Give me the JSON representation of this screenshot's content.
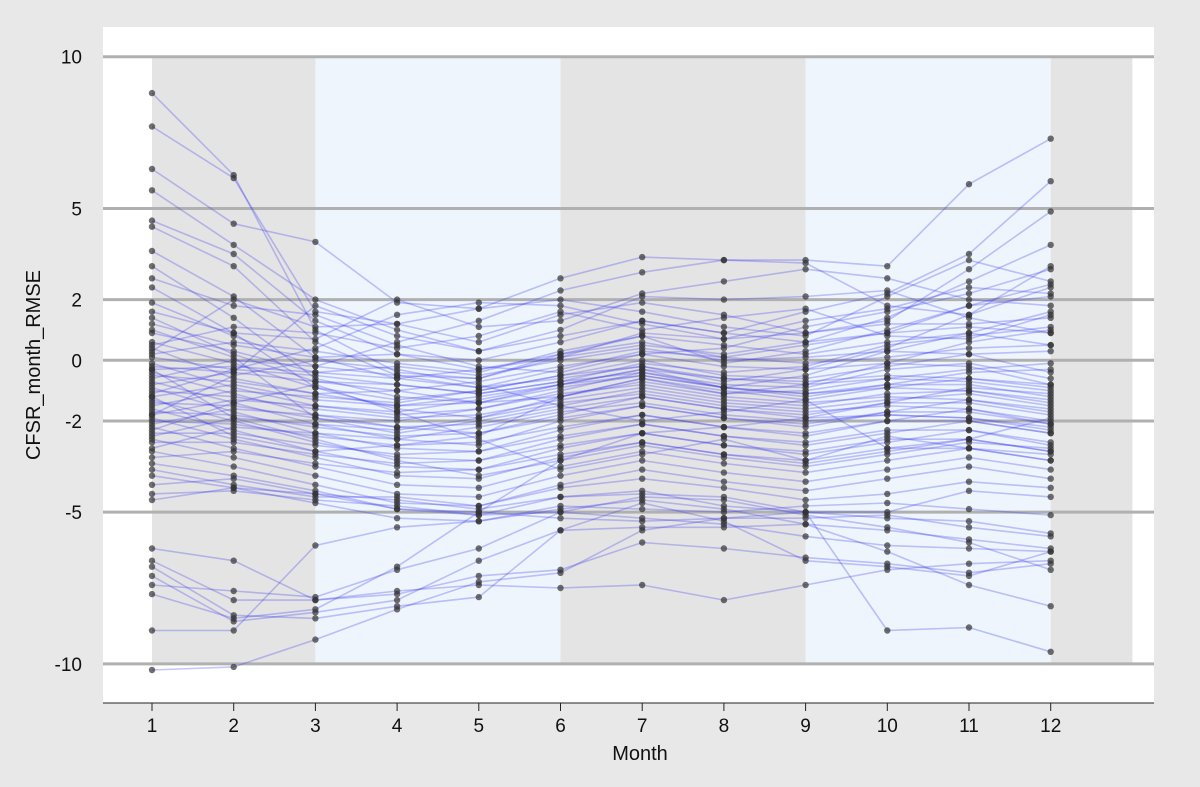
{
  "chart_data": {
    "type": "line",
    "title": "",
    "xlabel": "Month",
    "ylabel": "CFSR_month_RMSE",
    "x": [
      1,
      2,
      3,
      4,
      5,
      6,
      7,
      8,
      9,
      10,
      11,
      12
    ],
    "x_tick_labels": [
      "1",
      "2",
      "3",
      "4",
      "5",
      "6",
      "7",
      "8",
      "9",
      "10",
      "11",
      "12"
    ],
    "xlim": [
      0.4,
      13.0
    ],
    "ylim": [
      -11.2,
      11.0
    ],
    "y_ticks": [
      -10,
      -5,
      -2,
      0,
      2,
      5,
      10
    ],
    "y_tick_labels": [
      "-10",
      "-5",
      "-2",
      "0",
      "2",
      "5",
      "10"
    ],
    "grid": "horizontal at y ticks",
    "legend": "none",
    "season_bands": [
      {
        "from": 1,
        "to": 3,
        "color": "#e4e4e4"
      },
      {
        "from": 3,
        "to": 6,
        "color": "#eef5fc"
      },
      {
        "from": 6,
        "to": 9,
        "color": "#e4e4e4"
      },
      {
        "from": 9,
        "to": 12,
        "color": "#eef5fc"
      },
      {
        "from": 12,
        "to": 13,
        "color": "#e4e4e4"
      }
    ],
    "colors": {
      "line": "#3333ee",
      "point": "#333333",
      "grid": "#b0b0b0",
      "plot_bg": "#ffffff",
      "page_bg": "#e8e8e8"
    },
    "series": [
      {
        "values": [
          8.8,
          6.1,
          1.0,
          -0.4,
          -0.6,
          0.2,
          0.8,
          -0.1,
          0.3,
          1.0,
          1.8,
          2.1
        ]
      },
      {
        "values": [
          7.7,
          6.0,
          1.6,
          1.2,
          0.6,
          1.5,
          1.9,
          1.5,
          0.9,
          1.3,
          3.0,
          4.9
        ]
      },
      {
        "values": [
          6.3,
          4.5,
          3.9,
          1.9,
          1.7,
          2.7,
          3.4,
          3.3,
          3.3,
          3.1,
          5.8,
          7.3
        ]
      },
      {
        "values": [
          5.6,
          3.8,
          2.0,
          1.0,
          0.3,
          0.8,
          1.3,
          0.9,
          1.6,
          2.2,
          3.5,
          5.9
        ]
      },
      {
        "values": [
          4.6,
          3.5,
          1.3,
          0.2,
          -0.3,
          0.1,
          0.5,
          0.2,
          0.6,
          1.4,
          2.6,
          3.8
        ]
      },
      {
        "values": [
          4.4,
          3.1,
          0.6,
          -0.5,
          -0.9,
          -0.6,
          -0.2,
          -0.7,
          -0.3,
          0.4,
          1.5,
          3.1
        ]
      },
      {
        "values": [
          3.6,
          2.1,
          0.1,
          -0.6,
          -0.9,
          -0.3,
          0.3,
          0.1,
          0.5,
          0.9,
          1.8,
          2.5
        ]
      },
      {
        "values": [
          3.1,
          1.4,
          -0.6,
          -1.2,
          -1.4,
          -0.8,
          -0.3,
          -0.9,
          -0.5,
          0.3,
          0.9,
          1.6
        ]
      },
      {
        "values": [
          2.4,
          0.9,
          -0.9,
          -1.6,
          -1.9,
          -1.2,
          -0.6,
          -1.1,
          -0.8,
          -0.1,
          0.6,
          1.0
        ]
      },
      {
        "values": [
          1.9,
          0.8,
          -0.2,
          -0.5,
          -0.6,
          0.1,
          0.9,
          0.7,
          0.9,
          1.2,
          1.2,
          1.4
        ]
      },
      {
        "values": [
          1.4,
          0.2,
          -0.7,
          -0.8,
          -1.1,
          -0.7,
          -0.1,
          -0.4,
          -0.2,
          0.5,
          0.8,
          1.1
        ]
      },
      {
        "values": [
          1.2,
          0.5,
          0.1,
          0.2,
          0.0,
          0.6,
          1.3,
          0.9,
          0.6,
          0.9,
          1.1,
          0.9
        ]
      },
      {
        "values": [
          0.9,
          0.3,
          -0.4,
          -0.6,
          -0.3,
          0.2,
          0.6,
          0.1,
          -0.1,
          0.1,
          0.4,
          0.5
        ]
      },
      {
        "values": [
          0.6,
          -0.1,
          -0.9,
          -1.3,
          -1.0,
          -0.5,
          0.0,
          -0.5,
          -0.6,
          -0.2,
          0.2,
          0.3
        ]
      },
      {
        "values": [
          0.4,
          -0.6,
          -1.1,
          -1.0,
          -1.4,
          -1.2,
          -0.7,
          -1.1,
          -1.0,
          -0.6,
          -0.3,
          -0.1
        ]
      },
      {
        "values": [
          0.2,
          0.6,
          0.3,
          -0.1,
          -0.4,
          0.3,
          0.8,
          0.5,
          0.2,
          0.6,
          0.9,
          0.5
        ]
      },
      {
        "values": [
          0.1,
          -0.3,
          -0.5,
          -0.8,
          -1.1,
          -0.7,
          -0.4,
          -0.8,
          -0.9,
          -0.3,
          -0.1,
          -0.6
        ]
      },
      {
        "values": [
          -0.1,
          -0.9,
          -1.5,
          -1.8,
          -1.6,
          -1.0,
          -0.4,
          -0.9,
          -1.2,
          -0.8,
          -0.4,
          -0.3
        ]
      },
      {
        "values": [
          -0.3,
          -0.2,
          -0.4,
          -0.2,
          -0.5,
          0.0,
          0.4,
          0.0,
          0.1,
          0.3,
          0.2,
          -0.4
        ]
      },
      {
        "values": [
          -0.4,
          -1.1,
          -1.8,
          -2.2,
          -2.4,
          -1.8,
          -1.2,
          -1.6,
          -1.9,
          -1.4,
          -0.9,
          -1.1
        ]
      },
      {
        "values": [
          -0.5,
          -0.7,
          -1.1,
          -1.5,
          -1.2,
          -0.8,
          -0.3,
          -0.6,
          -0.7,
          -0.5,
          -0.6,
          -0.9
        ]
      },
      {
        "values": [
          -0.7,
          -1.4,
          -2.1,
          -2.6,
          -2.8,
          -2.0,
          -1.5,
          -1.9,
          -2.2,
          -1.7,
          -1.3,
          -1.6
        ]
      },
      {
        "values": [
          -0.8,
          -0.4,
          -0.7,
          -1.0,
          -0.7,
          -0.2,
          0.2,
          -0.2,
          -0.3,
          -0.1,
          -0.2,
          -0.8
        ]
      },
      {
        "values": [
          -0.9,
          -1.7,
          -2.4,
          -2.9,
          -3.0,
          -2.3,
          -1.8,
          -2.2,
          -2.5,
          -2.0,
          -1.6,
          -2.1
        ]
      },
      {
        "values": [
          -1.0,
          -1.2,
          -1.6,
          -1.9,
          -1.8,
          -1.3,
          -0.9,
          -1.3,
          -1.5,
          -1.1,
          -1.0,
          -1.3
        ]
      },
      {
        "values": [
          -1.2,
          -0.8,
          -1.3,
          -1.5,
          -1.4,
          -0.9,
          -0.5,
          -0.9,
          -1.1,
          -0.8,
          -0.8,
          -1.2
        ]
      },
      {
        "values": [
          -1.3,
          -2.0,
          -2.7,
          -3.2,
          -3.3,
          -2.6,
          -2.1,
          -2.5,
          -2.8,
          -2.4,
          -2.0,
          -2.4
        ]
      },
      {
        "values": [
          -1.4,
          -1.5,
          -1.9,
          -2.2,
          -2.1,
          -1.6,
          -1.2,
          -1.6,
          -1.8,
          -1.4,
          -1.4,
          -1.8
        ]
      },
      {
        "values": [
          -1.5,
          -1.0,
          -1.2,
          -1.4,
          -1.0,
          -0.5,
          -0.2,
          -0.6,
          -0.8,
          -0.6,
          -0.7,
          -1.0
        ]
      },
      {
        "values": [
          -1.6,
          -2.3,
          -3.0,
          -3.5,
          -3.6,
          -2.9,
          -2.4,
          -2.8,
          -3.1,
          -2.7,
          -2.3,
          -2.8
        ]
      },
      {
        "values": [
          -1.7,
          -1.8,
          -2.2,
          -2.5,
          -2.4,
          -1.9,
          -1.5,
          -1.9,
          -2.1,
          -1.7,
          -1.7,
          -2.1
        ]
      },
      {
        "values": [
          -1.8,
          -1.3,
          -1.5,
          -1.7,
          -1.3,
          -0.8,
          -0.5,
          -0.9,
          -1.1,
          -0.9,
          -1.0,
          -1.4
        ]
      },
      {
        "values": [
          -1.9,
          -2.6,
          -3.2,
          -3.8,
          -3.9,
          -3.2,
          -2.7,
          -3.1,
          -3.4,
          -3.0,
          -2.6,
          -3.0
        ]
      },
      {
        "values": [
          -2.0,
          -2.1,
          -2.5,
          -2.8,
          -2.7,
          -2.2,
          -1.8,
          -2.2,
          -2.4,
          -2.0,
          -2.0,
          -2.4
        ]
      },
      {
        "values": [
          -2.1,
          -1.6,
          -1.8,
          -2.0,
          -1.6,
          -1.1,
          -0.8,
          -1.2,
          -1.4,
          -1.2,
          -1.3,
          -1.7
        ]
      },
      {
        "values": [
          -2.2,
          -2.9,
          -3.5,
          -4.1,
          -4.2,
          -3.5,
          -3.0,
          -3.4,
          -3.7,
          -3.3,
          -2.9,
          -3.3
        ]
      },
      {
        "values": [
          -2.4,
          -2.4,
          -2.8,
          -3.1,
          -3.0,
          -2.5,
          -2.1,
          -2.5,
          -2.7,
          -2.3,
          -2.3,
          -2.7
        ]
      },
      {
        "values": [
          -2.5,
          -1.9,
          -2.1,
          -2.3,
          -1.9,
          -1.4,
          -1.1,
          -1.5,
          -1.7,
          -1.5,
          -1.6,
          -2.0
        ]
      },
      {
        "values": [
          -2.6,
          -3.2,
          -3.8,
          -4.4,
          -4.5,
          -3.8,
          -3.3,
          -3.7,
          -4.0,
          -3.6,
          -3.2,
          -3.6
        ]
      },
      {
        "values": [
          -2.7,
          -2.7,
          -3.1,
          -3.4,
          -3.3,
          -2.8,
          -2.4,
          -2.8,
          -3.0,
          -2.6,
          -2.6,
          -3.0
        ]
      },
      {
        "values": [
          -2.9,
          -2.2,
          -2.4,
          -2.6,
          -2.2,
          -1.7,
          -1.4,
          -1.8,
          -2.0,
          -1.8,
          -1.9,
          -2.3
        ]
      },
      {
        "values": [
          -3.0,
          -3.5,
          -4.1,
          -4.7,
          -4.8,
          -4.1,
          -3.6,
          -4.0,
          -4.3,
          -3.9,
          -3.5,
          -3.9
        ]
      },
      {
        "values": [
          -3.2,
          -3.0,
          -3.4,
          -3.7,
          -3.6,
          -3.1,
          -2.7,
          -3.1,
          -3.3,
          -2.9,
          -2.9,
          -3.3
        ]
      },
      {
        "values": [
          -3.4,
          -3.8,
          -4.3,
          -4.9,
          -5.1,
          -4.5,
          -4.4,
          -4.5,
          -5.0,
          -5.0,
          -4.3,
          -4.5
        ]
      },
      {
        "values": [
          -3.6,
          -4.1,
          -4.5,
          -4.5,
          -4.8,
          -4.2,
          -3.9,
          -4.2,
          -4.6,
          -4.4,
          -4.0,
          -4.2
        ]
      },
      {
        "values": [
          -3.8,
          -4.2,
          -4.7,
          -5.2,
          -5.3,
          -4.9,
          -4.6,
          -4.9,
          -5.4,
          -5.6,
          -5.9,
          -6.2
        ]
      },
      {
        "values": [
          -4.1,
          -3.9,
          -4.4,
          -4.6,
          -4.9,
          -4.5,
          -4.3,
          -4.8,
          -5.0,
          -5.2,
          -5.3,
          -5.7
        ]
      },
      {
        "values": [
          -4.4,
          -4.3,
          -4.6,
          -4.8,
          -5.1,
          -5.0,
          -5.2,
          -5.4,
          -5.8,
          -6.1,
          -6.2,
          -6.3
        ]
      },
      {
        "values": [
          -4.6,
          -4.2,
          -4.4,
          -4.9,
          -5.0,
          -5.2,
          -5.3,
          -5.2,
          -5.2,
          -5.1,
          -5.5,
          -5.8
        ]
      },
      {
        "values": [
          -6.2,
          -6.6,
          -7.9,
          -7.6,
          -7.4,
          -7.5,
          -7.4,
          -7.9,
          -7.4,
          -6.9,
          -6.7,
          -6.6
        ]
      },
      {
        "values": [
          -6.6,
          -7.9,
          -7.9,
          -7.7,
          -7.1,
          -6.9,
          -6.0,
          -6.2,
          -6.5,
          -6.7,
          -7.0,
          -6.7
        ]
      },
      {
        "values": [
          -6.8,
          -8.4,
          -8.5,
          -8.1,
          -7.8,
          -5.6,
          -5.5,
          -5.5,
          -5.4,
          -6.3,
          -7.4,
          -8.1
        ]
      },
      {
        "values": [
          -7.1,
          -8.6,
          -8.3,
          -7.9,
          -6.6,
          -5.6,
          -4.7,
          -5.3,
          -6.6,
          -6.8,
          -7.1,
          -6.3
        ]
      },
      {
        "values": [
          -7.4,
          -7.6,
          -7.8,
          -6.9,
          -6.2,
          -5.0,
          -4.5,
          -4.6,
          -5.1,
          -5.5,
          -6.0,
          -6.9
        ]
      },
      {
        "values": [
          -7.7,
          -8.5,
          -8.2,
          -6.8,
          -5.0,
          -3.3,
          -2.4,
          -2.2,
          -1.9,
          -1.8,
          -1.9,
          -2.2
        ]
      },
      {
        "values": [
          -8.9,
          -8.9,
          -6.1,
          -5.5,
          -5.3,
          -4.8,
          -4.9,
          -5.0,
          -4.8,
          -4.7,
          -4.9,
          -5.1
        ]
      },
      {
        "values": [
          -10.2,
          -10.1,
          -9.2,
          -8.2,
          -7.3,
          -7.0,
          -5.6,
          -5.2,
          -5.0,
          -8.9,
          -8.8,
          -9.6
        ]
      },
      {
        "values": [
          -0.2,
          -0.4,
          1.8,
          0.8,
          0.3,
          1.0,
          2.1,
          2.0,
          2.1,
          2.3,
          1.4,
          0.9
        ]
      },
      {
        "values": [
          0.3,
          2.0,
          1.1,
          1.2,
          1.7,
          2.0,
          1.6,
          1.1,
          0.8,
          2.1,
          3.3,
          2.6
        ]
      },
      {
        "values": [
          -1.1,
          -0.3,
          0.4,
          1.5,
          1.9,
          1.8,
          1.2,
          0.7,
          1.3,
          1.7,
          2.4,
          2.2
        ]
      },
      {
        "values": [
          1.6,
          0.9,
          0.7,
          2.0,
          1.1,
          1.3,
          2.2,
          2.6,
          3.0,
          2.7,
          2.0,
          1.8
        ]
      },
      {
        "values": [
          -0.6,
          0.0,
          -0.2,
          0.6,
          1.3,
          2.3,
          2.9,
          3.3,
          3.2,
          1.8,
          1.5,
          2.4
        ]
      },
      {
        "values": [
          2.7,
          1.8,
          1.5,
          0.5,
          -0.2,
          -0.4,
          0.2,
          0.4,
          1.1,
          1.6,
          2.2,
          3.0
        ]
      },
      {
        "values": [
          0.5,
          1.1,
          0.9,
          0.4,
          0.8,
          1.6,
          1.0,
          1.4,
          1.7,
          0.8,
          0.7,
          1.5
        ]
      },
      {
        "values": [
          -1.2,
          -2.5,
          -3.0,
          -2.8,
          -2.5,
          -1.2,
          -0.6,
          -1.0,
          -1.3,
          -2.9,
          -2.6,
          -1.9
        ]
      },
      {
        "values": [
          -2.3,
          -1.4,
          -0.8,
          -1.7,
          -2.6,
          -3.6,
          -3.1,
          -2.6,
          -3.3,
          -2.5,
          -2.9,
          -3.1
        ]
      },
      {
        "values": [
          -0.3,
          -1.9,
          -2.6,
          -3.3,
          -3.8,
          -3.3,
          -2.8,
          -3.2,
          -3.5,
          -3.1,
          -2.7,
          -2.9
        ]
      },
      {
        "values": [
          1.0,
          0.1,
          -1.9,
          -2.4,
          -2.0,
          -1.5,
          -1.0,
          -1.4,
          -1.6,
          -1.3,
          -1.1,
          -1.5
        ]
      },
      {
        "values": [
          -1.8,
          -0.5,
          0.0,
          -0.3,
          -0.8,
          -1.5,
          -2.0,
          -1.7,
          -1.3,
          -0.9,
          -0.6,
          -0.8
        ]
      }
    ]
  }
}
